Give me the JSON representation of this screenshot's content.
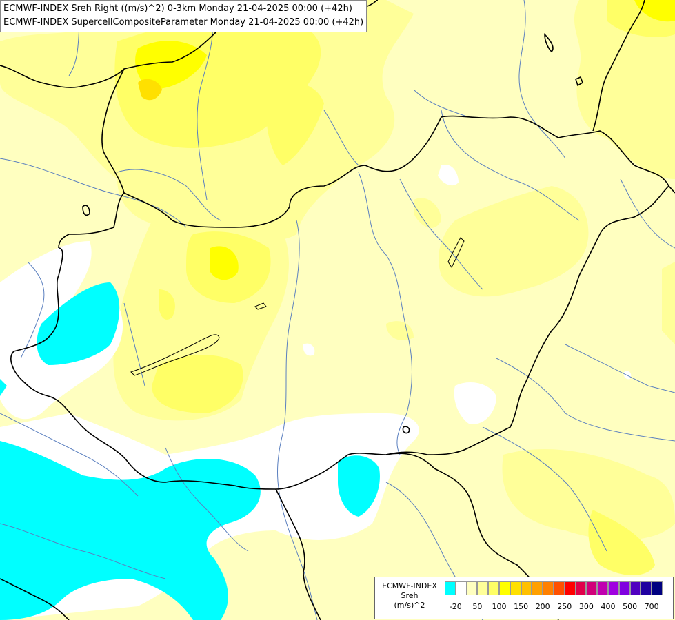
{
  "header": {
    "line1": "ECMWF-INDEX Sreh Right ((m/s)^2) 0-3km Monday 21-04-2025 00:00 (+42h)",
    "line2": "ECMWF-INDEX SupercellCompositeParameter Monday 21-04-2025 00:00 (+42h)"
  },
  "legend": {
    "title_line1": "ECMWF-INDEX",
    "title_line2": "Sreh",
    "title_line3": "(m/s)^2",
    "colors": [
      "#00ffff",
      "#ffffff",
      "#ffffc0",
      "#ffff99",
      "#ffff66",
      "#ffff00",
      "#ffe000",
      "#ffc000",
      "#ffa000",
      "#ff8000",
      "#ff5000",
      "#ff0000",
      "#e0004a",
      "#d0007a",
      "#c000b0",
      "#a000e0",
      "#8000e0",
      "#5000c0",
      "#2000a0",
      "#000080"
    ],
    "ticks": [
      "-20",
      "50",
      "100",
      "150",
      "200",
      "250",
      "300",
      "400",
      "500",
      "700"
    ]
  },
  "map": {
    "colors": {
      "cyan": "#00ffff",
      "white": "#ffffff",
      "pale": "#ffffc0",
      "light": "#ffff99",
      "yellow": "#ffff66",
      "bright": "#ffff00",
      "gold": "#ffe000",
      "border": "#000000",
      "river": "#5a7fbf"
    }
  }
}
